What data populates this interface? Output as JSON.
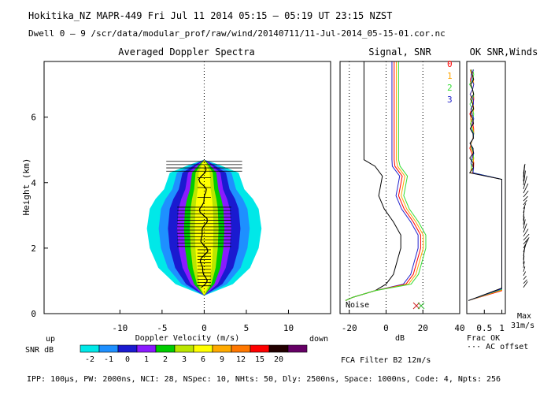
{
  "header": {
    "line1": "Hokitika_NZ  MAPR-449  Fri Jul 11 2014 05:15 — 05:19 UT 23:15 NZST",
    "line2": "Dwell  0 —  9   /scr/data/modular_prof/raw/wind/20140711/11-Jul-2014_05-15-01.cor.nc"
  },
  "footer": {
    "params": "IPP: 100µs,  PW: 2000ns,  NCI:  28,  NSpec: 10, NHts: 50,  Dly: 2500ns,  Space: 1000ns,  Code: 4,  Npts: 256"
  },
  "colors": {
    "background": "#ffffff",
    "axis": "#000000",
    "ok_red": "#ff0000",
    "ok_orange": "#ffa500",
    "ok_green": "#33dd33",
    "ok_blue": "#2222cc"
  },
  "chart_data": [
    {
      "id": "spectra",
      "type": "heatmap",
      "title": "Averaged Doppler Spectra",
      "xlabel": "Doppler Velocity (m/s)",
      "ylabel": "Height (km)",
      "x_left_note": "up",
      "x_right_note": "down",
      "xlim": [
        -19,
        15
      ],
      "ylim": [
        0,
        7.7
      ],
      "xticks": [
        -10,
        -5,
        0,
        5,
        10
      ],
      "yticks": [
        0,
        2,
        4,
        6
      ],
      "legend": {
        "label": "SNR dB",
        "levels": [
          "-2",
          "-1",
          "0",
          "1",
          "2",
          "3",
          "6",
          "9",
          "12",
          "15",
          "20"
        ],
        "colors": [
          "#00e8e8",
          "#1e90ff",
          "#1a1ad0",
          "#8a1aff",
          "#00cc00",
          "#bbe600",
          "#ffff00",
          "#ffaa00",
          "#ff7700",
          "#ff0000",
          "#220000",
          "#660066"
        ]
      }
    },
    {
      "id": "signal",
      "type": "line",
      "title": "Signal, SNR",
      "xlabel": "dB",
      "xlim": [
        -25,
        40
      ],
      "ylim": [
        0,
        7.7
      ],
      "xticks": [
        -20,
        0,
        20,
        40
      ],
      "annotations": [
        "Noise"
      ]
    },
    {
      "id": "okwinds",
      "type": "line",
      "title": "OK SNR,Winds",
      "xlabel": "Frac OK",
      "xlabel2": "··· AC offset",
      "xlim": [
        0,
        1.1
      ],
      "ylim": [
        0,
        7.7
      ],
      "xticks": [
        "0.5",
        "1"
      ],
      "series_labels": [
        "0",
        "1",
        "2",
        "3"
      ],
      "wind_label": "Max",
      "wind_max": "31m/s"
    }
  ],
  "filter": "FCA Filter B2 12m/s"
}
